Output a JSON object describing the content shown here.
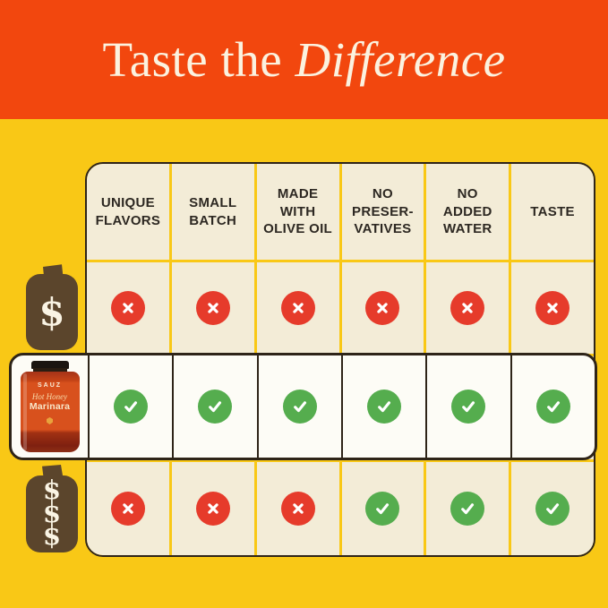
{
  "header": {
    "title_regular": "Taste the",
    "title_italic": "Difference"
  },
  "colors": {
    "banner_orange": "#F2470E",
    "background_yellow": "#F9C816",
    "cell_cream": "#F3ECD7",
    "outline_dark": "#2E2418",
    "check_green": "#55AD4E",
    "cross_red": "#E63B2B",
    "jar_brown": "#5B452C",
    "highlight_white": "#FDFCF6",
    "title_cream": "#FBF2DF"
  },
  "table": {
    "columns": [
      "UNIQUE\nFLAVORS",
      "SMALL\nBATCH",
      "MADE WITH\nOLIVE OIL",
      "NO\nPRESER-\nVATIVES",
      "NO\nADDED\nWATER",
      "TASTE"
    ],
    "rows": [
      {
        "id": "budget-competitor",
        "label_type": "jar-icon",
        "price_marker": "$",
        "values": [
          "no",
          "no",
          "no",
          "no",
          "no",
          "no"
        ]
      },
      {
        "id": "sauz-product",
        "label_type": "product-image",
        "price_marker": "",
        "values": [
          "yes",
          "yes",
          "yes",
          "yes",
          "yes",
          "yes"
        ]
      },
      {
        "id": "premium-competitor",
        "label_type": "jar-icon",
        "price_marker": "$$$",
        "values": [
          "no",
          "no",
          "no",
          "yes",
          "yes",
          "yes"
        ]
      }
    ]
  },
  "product": {
    "brand": "SAUZ",
    "name_script": "Hot Honey",
    "name_bold": "Marinara"
  },
  "chart_data": {
    "type": "table",
    "title": "Taste the Difference",
    "columns": [
      "UNIQUE FLAVORS",
      "SMALL BATCH",
      "MADE WITH OLIVE OIL",
      "NO PRESERVATIVES",
      "NO ADDED WATER",
      "TASTE"
    ],
    "rows": [
      {
        "name": "$ budget competitor jar",
        "values": [
          false,
          false,
          false,
          false,
          false,
          false
        ]
      },
      {
        "name": "Sauz Hot Honey Marinara",
        "values": [
          true,
          true,
          true,
          true,
          true,
          true
        ]
      },
      {
        "name": "$$$ premium competitor jar",
        "values": [
          false,
          false,
          false,
          true,
          true,
          true
        ]
      }
    ],
    "legend": {
      "check": "has feature",
      "cross": "lacks feature"
    },
    "layout": "3 rows x 6 feature columns, middle product row highlighted white"
  }
}
